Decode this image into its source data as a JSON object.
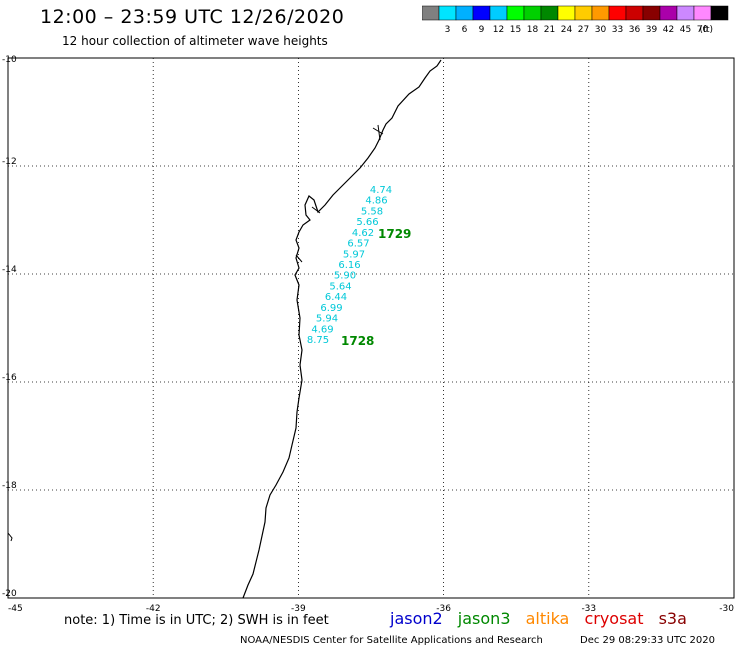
{
  "header": {
    "title": "12:00 – 23:59 UTC 12/26/2020",
    "subtitle": "12 hour collection of altimeter wave heights"
  },
  "colorbar": {
    "colors": [
      "#808080",
      "#00e5ff",
      "#00b0ff",
      "#0000ff",
      "#00ccff",
      "#00ff00",
      "#00d000",
      "#008800",
      "#ffff00",
      "#ffcc00",
      "#ff9900",
      "#ff0000",
      "#cc0000",
      "#880000",
      "#aa00aa",
      "#cc88ff",
      "#ff88ff",
      "#000000"
    ],
    "labels": [
      "3",
      "6",
      "9",
      "12",
      "15",
      "18",
      "21",
      "24",
      "27",
      "30",
      "33",
      "36",
      "39",
      "42",
      "45",
      "70"
    ],
    "unit": "(ft)"
  },
  "map": {
    "lon_range": [
      -45,
      -30
    ],
    "lat_range": [
      -20,
      -10
    ],
    "y_ticks": [
      "-10",
      "-12",
      "-14",
      "-16",
      "-18",
      "-20"
    ],
    "x_ticks": [
      "-45",
      "-42",
      "-39",
      "-36",
      "-33",
      "-30"
    ],
    "wave_heights": [
      "4.74",
      "4.86",
      "5.58",
      "5.66",
      "4.62",
      "6.57",
      "5.97",
      "6.16",
      "5.90",
      "5.64",
      "6.44",
      "6.99",
      "5.94",
      "4.69",
      "8.75"
    ],
    "passes": [
      {
        "time": "1729",
        "color": "#008800"
      },
      {
        "time": "1728",
        "color": "#008800"
      }
    ],
    "value_color": "#00c8d8"
  },
  "note": "note: 1) Time is in UTC; 2) SWH is in feet",
  "satellites": [
    {
      "name": "jason2",
      "color": "#0000cc"
    },
    {
      "name": "jason3",
      "color": "#008800"
    },
    {
      "name": "altika",
      "color": "#ff8800"
    },
    {
      "name": "cryosat",
      "color": "#dd0000"
    },
    {
      "name": "s3a",
      "color": "#880000"
    }
  ],
  "footer": {
    "center": "NOAA/NESDIS Center for Satellite Applications and Research",
    "timestamp": "Dec 29 08:29:33 UTC 2020"
  }
}
